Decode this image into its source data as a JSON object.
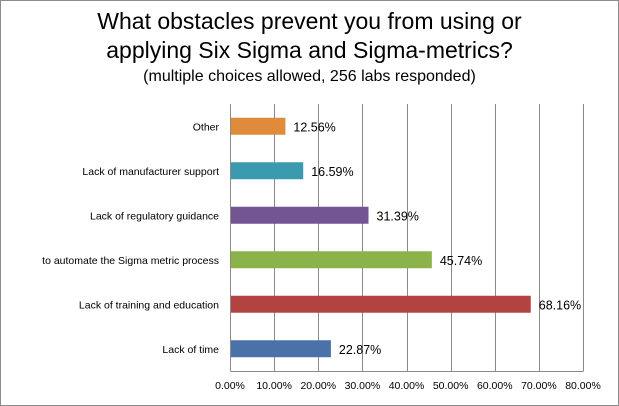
{
  "chart_data": {
    "type": "bar",
    "orientation": "horizontal",
    "title_lines": [
      "What obstacles prevent you from using or",
      "applying Six Sigma and Sigma-metrics?"
    ],
    "subtitle": "(multiple choices allowed, 256 labs responded)",
    "categories": [
      "Other",
      "Lack of manufacturer support",
      "Lack of regulatory guidance",
      "to automate the Sigma metric process",
      "Lack of training and education",
      "Lack of time"
    ],
    "values": [
      12.56,
      16.59,
      31.39,
      45.74,
      68.16,
      22.87
    ],
    "data_labels": [
      "12.56%",
      "16.59%",
      "31.39%",
      "45.74%",
      "68.16%",
      "22.87%"
    ],
    "colors": [
      "#E08A3C",
      "#3A9BB0",
      "#735593",
      "#8CB24A",
      "#B34340",
      "#4A72A8"
    ],
    "xlim": [
      0,
      80
    ],
    "xticks": [
      0,
      10,
      20,
      30,
      40,
      50,
      60,
      70,
      80
    ],
    "xtick_labels": [
      "0.00%",
      "10.00%",
      "20.00%",
      "30.00%",
      "40.00%",
      "50.00%",
      "60.00%",
      "70.00%",
      "80.00%"
    ],
    "grid": true,
    "legend": "none"
  }
}
